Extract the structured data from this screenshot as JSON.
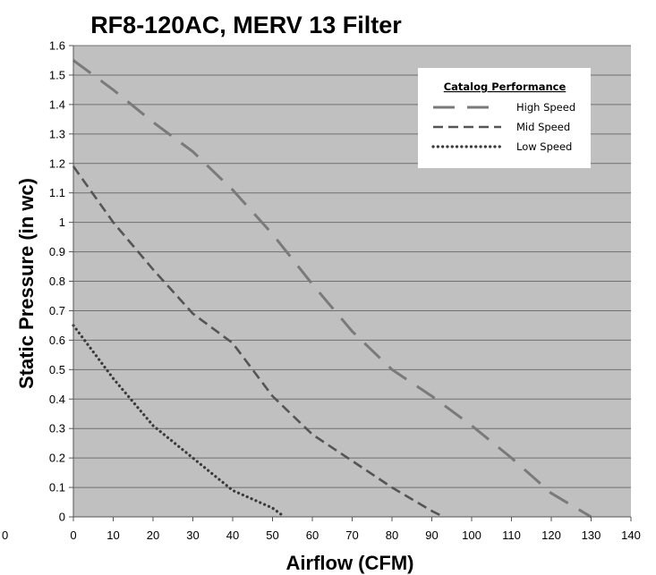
{
  "chart_data": {
    "type": "line",
    "title": "RF8-120AC, MERV 13 Filter",
    "xlabel": "Airflow (CFM)",
    "ylabel": "Static Pressure (in wc)",
    "xlim": [
      0,
      140
    ],
    "ylim": [
      0,
      1.6
    ],
    "x_ticks": [
      "0",
      "10",
      "20",
      "30",
      "40",
      "50",
      "60",
      "70",
      "80",
      "90",
      "100",
      "110",
      "120",
      "130",
      "140"
    ],
    "y_ticks": [
      "0",
      "0.1",
      "0.2",
      "0.3",
      "0.4",
      "0.5",
      "0.6",
      "0.7",
      "0.8",
      "0.9",
      "1",
      "1.1",
      "1.2",
      "1.3",
      "1.4",
      "1.5",
      "1.6"
    ],
    "stray_left_label": "0",
    "grid": "horizontal",
    "background_color": "#c0c0c0",
    "legend": {
      "title": "Catalog Performance",
      "placement": "top-right"
    },
    "series": [
      {
        "name": "High Speed",
        "style": "long-dash",
        "color": "#7a7a7a",
        "x": [
          0,
          10,
          20,
          30,
          40,
          50,
          60,
          70,
          80,
          90,
          100,
          110,
          120,
          130
        ],
        "y": [
          1.55,
          1.45,
          1.34,
          1.24,
          1.11,
          0.96,
          0.79,
          0.63,
          0.5,
          0.41,
          0.31,
          0.2,
          0.08,
          0.0
        ]
      },
      {
        "name": "Mid Speed",
        "style": "medium-dash",
        "color": "#555555",
        "x": [
          0,
          10,
          20,
          30,
          40,
          50,
          60,
          70,
          80,
          90,
          93
        ],
        "y": [
          1.19,
          1.0,
          0.84,
          0.69,
          0.59,
          0.41,
          0.28,
          0.19,
          0.1,
          0.02,
          0.0
        ]
      },
      {
        "name": "Low Speed",
        "style": "dotted",
        "color": "#3a3a3a",
        "x": [
          0,
          10,
          20,
          30,
          40,
          50,
          53
        ],
        "y": [
          0.65,
          0.47,
          0.31,
          0.2,
          0.09,
          0.03,
          0.0
        ]
      }
    ]
  }
}
